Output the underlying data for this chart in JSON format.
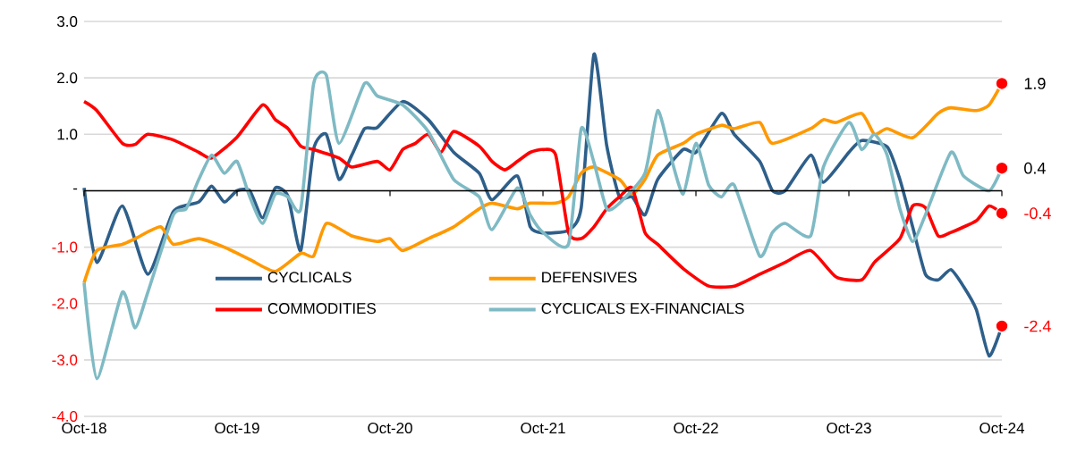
{
  "chart_data": {
    "type": "line",
    "xlim": [
      "2018-10",
      "2024-10"
    ],
    "xticks": [
      {
        "value": "2018-10",
        "label": "Oct-18"
      },
      {
        "value": "2019-10",
        "label": "Oct-19"
      },
      {
        "value": "2020-10",
        "label": "Oct-20"
      },
      {
        "value": "2021-10",
        "label": "Oct-21"
      },
      {
        "value": "2022-10",
        "label": "Oct-22"
      },
      {
        "value": "2023-10",
        "label": "Oct-23"
      },
      {
        "value": "2024-10",
        "label": "Oct-24"
      }
    ],
    "ylim": [
      -4,
      3
    ],
    "yticks": [
      {
        "value": 3,
        "label": "3.0"
      },
      {
        "value": 2,
        "label": "2.0"
      },
      {
        "value": 1,
        "label": "1.0"
      },
      {
        "value": 0,
        "label": "-"
      },
      {
        "value": -1,
        "label": "-1.0"
      },
      {
        "value": -2,
        "label": "-2.0"
      },
      {
        "value": -3,
        "label": "-3.0"
      },
      {
        "value": -4,
        "label": "-4.0"
      }
    ],
    "grid": "y",
    "legend": "bottom",
    "marker": "none",
    "line_style": "solid",
    "series": [
      {
        "name": "CYCLICALS",
        "color": "#2e5f8a",
        "x": [
          "2018-10",
          "2018-11",
          "2019-01",
          "2019-03",
          "2019-05",
          "2019-07",
          "2019-08",
          "2019-09",
          "2019-10",
          "2019-11",
          "2019-12",
          "2020-01",
          "2020-02",
          "2020-03",
          "2020-04",
          "2020-05",
          "2020-06",
          "2020-07",
          "2020-08",
          "2020-09",
          "2020-11",
          "2021-01",
          "2021-03",
          "2021-05",
          "2021-06",
          "2021-08",
          "2021-09",
          "2021-10",
          "2021-12",
          "2022-01",
          "2022-02",
          "2022-03",
          "2022-04",
          "2022-05",
          "2022-06",
          "2022-07",
          "2022-09",
          "2022-10",
          "2022-12",
          "2023-01",
          "2023-03",
          "2023-04",
          "2023-05",
          "2023-07",
          "2023-08",
          "2023-10",
          "2023-11",
          "2024-01",
          "2024-02",
          "2024-03",
          "2024-04",
          "2024-05",
          "2024-06",
          "2024-07",
          "2024-08",
          "2024-09",
          "2024-10"
        ],
        "values": [
          0.05,
          -1.27,
          -0.27,
          -1.48,
          -0.37,
          -0.2,
          0.08,
          -0.2,
          0.0,
          0.0,
          -0.48,
          0.05,
          -0.1,
          -1.06,
          0.73,
          1.0,
          0.2,
          0.63,
          1.1,
          1.12,
          1.58,
          1.26,
          0.68,
          0.31,
          -0.16,
          0.26,
          -0.64,
          -0.75,
          -0.7,
          -0.3,
          2.42,
          0.8,
          -0.11,
          -0.11,
          -0.43,
          0.2,
          0.73,
          0.68,
          1.37,
          1.0,
          0.52,
          0.0,
          0.0,
          0.63,
          0.15,
          0.68,
          0.89,
          0.78,
          0.2,
          -0.64,
          -1.48,
          -1.58,
          -1.4,
          -1.7,
          -2.11,
          -2.93,
          -2.4
        ]
      },
      {
        "name": "DEFENSIVES",
        "color": "#ff9900",
        "x": [
          "2018-10",
          "2018-11",
          "2019-01",
          "2019-02",
          "2019-04",
          "2019-05",
          "2019-07",
          "2019-09",
          "2019-11",
          "2020-01",
          "2020-03",
          "2020-04",
          "2020-05",
          "2020-07",
          "2020-09",
          "2020-10",
          "2020-11",
          "2021-01",
          "2021-03",
          "2021-05",
          "2021-06",
          "2021-08",
          "2021-09",
          "2021-11",
          "2021-12",
          "2022-01",
          "2022-02",
          "2022-04",
          "2022-05",
          "2022-06",
          "2022-07",
          "2022-09",
          "2022-10",
          "2022-12",
          "2023-01",
          "2023-03",
          "2023-04",
          "2023-07",
          "2023-08",
          "2023-09",
          "2023-11",
          "2023-12",
          "2024-01",
          "2024-03",
          "2024-05",
          "2024-06",
          "2024-08",
          "2024-09",
          "2024-10"
        ],
        "values": [
          -1.63,
          -1.06,
          -0.95,
          -0.85,
          -0.64,
          -0.95,
          -0.85,
          -1.0,
          -1.22,
          -1.43,
          -1.11,
          -1.16,
          -0.58,
          -0.8,
          -0.9,
          -0.85,
          -1.06,
          -0.85,
          -0.64,
          -0.32,
          -0.22,
          -0.32,
          -0.22,
          -0.22,
          -0.11,
          0.31,
          0.42,
          0.2,
          -0.06,
          0.2,
          0.63,
          0.84,
          1.0,
          1.16,
          1.1,
          1.21,
          0.84,
          1.1,
          1.26,
          1.21,
          1.37,
          1.0,
          1.1,
          0.94,
          1.37,
          1.47,
          1.42,
          1.52,
          1.9
        ]
      },
      {
        "name": "COMMODITIES",
        "color": "#ff0000",
        "x": [
          "2018-10",
          "2018-11",
          "2019-01",
          "2019-02",
          "2019-03",
          "2019-05",
          "2019-07",
          "2019-08",
          "2019-10",
          "2019-12",
          "2020-01",
          "2020-02",
          "2020-03",
          "2020-04",
          "2020-06",
          "2020-07",
          "2020-09",
          "2020-10",
          "2020-11",
          "2020-12",
          "2021-01",
          "2021-02",
          "2021-03",
          "2021-05",
          "2021-06",
          "2021-07",
          "2021-08",
          "2021-09",
          "2021-10",
          "2021-11",
          "2021-12",
          "2022-01",
          "2022-02",
          "2022-03",
          "2022-04",
          "2022-05",
          "2022-06",
          "2022-07",
          "2022-09",
          "2022-11",
          "2023-01",
          "2023-03",
          "2023-05",
          "2023-07",
          "2023-09",
          "2023-11",
          "2023-12",
          "2024-02",
          "2024-03",
          "2024-04",
          "2024-05",
          "2024-06",
          "2024-08",
          "2024-09",
          "2024-10"
        ],
        "values": [
          1.58,
          1.42,
          0.84,
          0.82,
          1.0,
          0.9,
          0.68,
          0.58,
          0.95,
          1.52,
          1.26,
          1.1,
          0.79,
          0.73,
          0.58,
          0.42,
          0.52,
          0.37,
          0.73,
          0.84,
          1.0,
          0.68,
          1.05,
          0.79,
          0.52,
          0.37,
          0.52,
          0.68,
          0.73,
          0.63,
          -0.74,
          -0.85,
          -0.64,
          -0.32,
          -0.11,
          0.05,
          -0.74,
          -0.95,
          -1.38,
          -1.69,
          -1.69,
          -1.48,
          -1.27,
          -1.06,
          -1.53,
          -1.58,
          -1.27,
          -0.85,
          -0.27,
          -0.3,
          -0.8,
          -0.74,
          -0.53,
          -0.27,
          -0.4
        ]
      },
      {
        "name": "CYCLICALS EX-FINANCIALS",
        "color": "#7fbac4",
        "x": [
          "2018-10",
          "2018-11",
          "2019-01",
          "2019-02",
          "2019-03",
          "2019-05",
          "2019-06",
          "2019-07",
          "2019-08",
          "2019-09",
          "2019-10",
          "2019-11",
          "2019-12",
          "2020-01",
          "2020-02",
          "2020-03",
          "2020-04",
          "2020-05",
          "2020-06",
          "2020-08",
          "2020-09",
          "2020-11",
          "2021-01",
          "2021-03",
          "2021-05",
          "2021-06",
          "2021-08",
          "2021-09",
          "2021-10",
          "2021-12",
          "2022-01",
          "2022-02",
          "2022-03",
          "2022-04",
          "2022-06",
          "2022-07",
          "2022-08",
          "2022-09",
          "2022-10",
          "2022-11",
          "2022-12",
          "2023-01",
          "2023-03",
          "2023-04",
          "2023-05",
          "2023-07",
          "2023-08",
          "2023-10",
          "2023-11",
          "2023-12",
          "2024-01",
          "2024-02",
          "2024-03",
          "2024-04",
          "2024-06",
          "2024-07",
          "2024-09",
          "2024-10"
        ],
        "values": [
          -1.63,
          -3.33,
          -1.8,
          -2.43,
          -1.8,
          -0.43,
          -0.32,
          0.2,
          0.63,
          0.31,
          0.52,
          -0.11,
          -0.58,
          -0.06,
          -0.11,
          -0.32,
          1.89,
          2.05,
          0.84,
          1.9,
          1.68,
          1.52,
          1.05,
          0.2,
          -0.11,
          -0.69,
          0.05,
          -0.43,
          -0.74,
          -0.95,
          1.1,
          0.5,
          -0.32,
          -0.22,
          0.31,
          1.42,
          0.63,
          -0.06,
          0.84,
          0.1,
          -0.11,
          0.1,
          -1.16,
          -0.74,
          -0.58,
          -0.8,
          0.42,
          1.21,
          0.73,
          1.0,
          0.63,
          -0.32,
          -0.9,
          -0.43,
          0.68,
          0.26,
          0.0,
          0.4
        ]
      }
    ],
    "annotations": [
      {
        "text": "1.9",
        "x": "2024-10",
        "y": 1.9
      },
      {
        "text": "0.4",
        "x": "2024-10",
        "y": 0.4
      },
      {
        "text": "-0.4",
        "x": "2024-10",
        "y": -0.4
      },
      {
        "text": "-2.4",
        "x": "2024-10",
        "y": -2.4
      }
    ]
  }
}
